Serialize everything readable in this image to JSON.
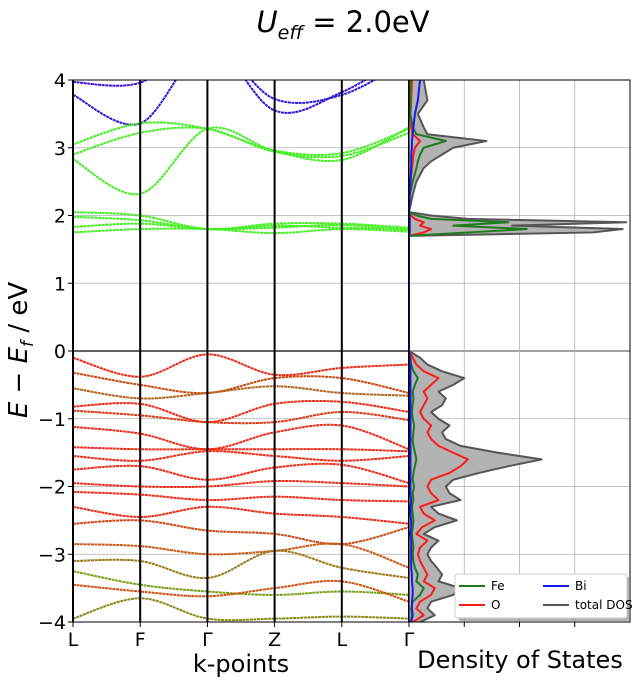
{
  "chart_data": [
    {
      "type": "line",
      "panel": "band structure",
      "title": "U_eff = 2.0eV",
      "title_parts": {
        "symbol": "U",
        "subscript": "eff",
        "rest": " = 2.0eV"
      },
      "xlabel": "k-points",
      "ylabel": "E − E_f   /   eV",
      "ylabel_parts": {
        "e": "E",
        "minus": " − ",
        "ef": "E",
        "ef_sub": "f",
        "unit": "   /   eV"
      },
      "x_ticks": [
        "L",
        "F",
        "Γ",
        "Z",
        "L",
        "Γ"
      ],
      "x": [
        0,
        1,
        2,
        3,
        4,
        5
      ],
      "ylim": [
        -4,
        4
      ],
      "y_ticks": [
        "−4",
        "−3",
        "−2",
        "−1",
        "0",
        "1",
        "2",
        "3",
        "4"
      ],
      "y_tick_values": [
        -4,
        -3,
        -2,
        -1,
        0,
        1,
        2,
        3,
        4
      ],
      "grid": true,
      "fermi_level": 0,
      "series": [
        {
          "color": "#3a10d6",
          "values": [
            3.97,
            3.96,
            4.6,
            3.55,
            3.82,
            4.4
          ]
        },
        {
          "color": "#2a1cd0",
          "values": [
            3.78,
            3.36,
            4.5,
            3.72,
            3.78,
            4.3
          ]
        },
        {
          "color": "#44ee22",
          "values": [
            3.05,
            3.36,
            3.28,
            2.96,
            2.92,
            3.28
          ]
        },
        {
          "color": "#44ee22",
          "values": [
            2.9,
            3.22,
            3.28,
            2.94,
            2.88,
            3.22
          ]
        },
        {
          "color": "#44ee22",
          "values": [
            2.83,
            2.32,
            3.28,
            2.95,
            2.82,
            3.3
          ]
        },
        {
          "color": "#44ee22",
          "values": [
            2.05,
            2.0,
            1.8,
            1.88,
            1.88,
            1.82
          ]
        },
        {
          "color": "#44ee22",
          "values": [
            1.98,
            1.93,
            1.8,
            1.85,
            1.82,
            1.8
          ]
        },
        {
          "color": "#44ee22",
          "values": [
            1.83,
            1.88,
            1.8,
            1.82,
            1.86,
            1.78
          ]
        },
        {
          "color": "#44ee22",
          "values": [
            1.75,
            1.8,
            1.8,
            1.74,
            1.8,
            1.76
          ]
        },
        {
          "color": "#ee2a14",
          "values": [
            -0.1,
            -0.38,
            -0.05,
            -0.35,
            -0.25,
            -0.2
          ]
        },
        {
          "color": "#c84a14",
          "values": [
            -0.32,
            -0.5,
            -0.62,
            -0.4,
            -0.4,
            -0.62
          ]
        },
        {
          "color": "#b0661a",
          "values": [
            -0.55,
            -0.7,
            -0.62,
            -0.52,
            -0.62,
            -0.66
          ]
        },
        {
          "color": "#ee2a14",
          "values": [
            -0.82,
            -0.78,
            -1.05,
            -0.78,
            -0.75,
            -0.9
          ]
        },
        {
          "color": "#d83a14",
          "values": [
            -0.88,
            -0.95,
            -1.05,
            -1.05,
            -0.9,
            -1.02
          ]
        },
        {
          "color": "#ee2a14",
          "values": [
            -1.12,
            -1.22,
            -1.45,
            -1.2,
            -1.1,
            -1.45
          ]
        },
        {
          "color": "#ee2a14",
          "values": [
            -1.42,
            -1.45,
            -1.45,
            -1.45,
            -1.45,
            -1.48
          ]
        },
        {
          "color": "#ee2a14",
          "values": [
            -1.55,
            -1.62,
            -1.48,
            -1.55,
            -1.62,
            -1.55
          ]
        },
        {
          "color": "#ee2a14",
          "values": [
            -1.75,
            -1.7,
            -1.9,
            -1.72,
            -1.68,
            -1.95
          ]
        },
        {
          "color": "#ee2a14",
          "values": [
            -1.95,
            -2.0,
            -2.0,
            -1.92,
            -1.95,
            -2.0
          ]
        },
        {
          "color": "#ee2a14",
          "values": [
            -2.08,
            -2.12,
            -2.2,
            -2.15,
            -2.2,
            -2.22
          ]
        },
        {
          "color": "#ee2a14",
          "values": [
            -2.3,
            -2.45,
            -2.3,
            -2.4,
            -2.45,
            -2.55
          ]
        },
        {
          "color": "#c84a14",
          "values": [
            -2.55,
            -2.5,
            -2.65,
            -2.7,
            -2.85,
            -2.6
          ]
        },
        {
          "color": "#c85a14",
          "values": [
            -2.85,
            -2.88,
            -3.0,
            -2.95,
            -2.85,
            -3.2
          ]
        },
        {
          "color": "#9a7a1a",
          "values": [
            -3.1,
            -3.1,
            -3.35,
            -2.95,
            -3.2,
            -3.35
          ]
        },
        {
          "color": "#7aa01a",
          "values": [
            -3.25,
            -3.45,
            -3.55,
            -3.6,
            -3.55,
            -3.6
          ]
        },
        {
          "color": "#cc5414",
          "values": [
            -3.45,
            -3.55,
            -3.62,
            -3.5,
            -3.4,
            -3.7
          ]
        },
        {
          "color": "#8a8a1a",
          "values": [
            -3.95,
            -3.65,
            -3.95,
            -3.95,
            -3.92,
            -3.95
          ]
        }
      ]
    },
    {
      "type": "area",
      "panel": "density of states",
      "xlabel": "Density of States",
      "ylim": [
        -4,
        4
      ],
      "grid": true,
      "legend_placement": "lower-right",
      "series": [
        {
          "name": "Fe",
          "color": "#1e7a1e",
          "y": [
            -4,
            -3.9,
            -3.8,
            -3.7,
            -3.6,
            -3.5,
            -3.4,
            -3.3,
            -3.2,
            -3.1,
            -3.0,
            -2.9,
            -2.8,
            -2.7,
            -2.6,
            -2.5,
            -2.4,
            -2.3,
            -2.2,
            -2.1,
            -2.0,
            -1.9,
            -1.8,
            -1.7,
            -1.6,
            -1.5,
            -1.4,
            -1.3,
            -1.2,
            -1.1,
            -1.0,
            -0.9,
            -0.8,
            -0.7,
            -0.6,
            -0.5,
            -0.4,
            -0.3,
            -0.2,
            -0.1,
            0,
            1.7,
            1.75,
            1.8,
            1.85,
            1.9,
            1.95,
            2.0,
            2.05,
            2.3,
            2.5,
            2.7,
            2.8,
            2.9,
            3.0,
            3.1,
            3.2,
            3.3,
            3.5,
            3.7,
            4.0
          ],
          "values": [
            0.02,
            0.04,
            0.03,
            0.05,
            0.15,
            0.2,
            0.1,
            0.12,
            0.08,
            0.06,
            0.05,
            0.06,
            0.05,
            0.04,
            0.05,
            0.06,
            0.05,
            0.04,
            0.06,
            0.05,
            0.07,
            0.05,
            0.06,
            0.08,
            0.1,
            0.08,
            0.06,
            0.05,
            0.06,
            0.07,
            0.05,
            0.04,
            0.05,
            0.06,
            0.05,
            0.08,
            0.12,
            0.06,
            0.03,
            0.02,
            0.0,
            0.0,
            0.8,
            1.6,
            0.6,
            1.35,
            0.3,
            0.1,
            0.0,
            0.01,
            0.05,
            0.1,
            0.12,
            0.15,
            0.2,
            0.5,
            0.1,
            0.05,
            0.02,
            0.02,
            0.02
          ]
        },
        {
          "name": "O",
          "color": "#ff1a1a",
          "y": [
            -4,
            -3.9,
            -3.8,
            -3.7,
            -3.6,
            -3.5,
            -3.4,
            -3.3,
            -3.2,
            -3.1,
            -3.0,
            -2.9,
            -2.8,
            -2.7,
            -2.6,
            -2.5,
            -2.4,
            -2.3,
            -2.2,
            -2.1,
            -2.0,
            -1.9,
            -1.8,
            -1.7,
            -1.6,
            -1.5,
            -1.4,
            -1.3,
            -1.2,
            -1.1,
            -1.0,
            -0.9,
            -0.8,
            -0.7,
            -0.6,
            -0.5,
            -0.4,
            -0.3,
            -0.2,
            -0.1,
            0,
            1.7,
            1.75,
            1.8,
            1.85,
            1.9,
            1.95,
            2.0,
            2.05,
            2.3,
            2.5,
            2.7,
            2.8,
            2.9,
            3.0,
            3.1,
            3.2,
            3.3,
            3.5,
            3.7,
            4.0
          ],
          "values": [
            0.05,
            0.2,
            0.1,
            0.15,
            0.3,
            0.35,
            0.2,
            0.25,
            0.2,
            0.15,
            0.12,
            0.15,
            0.25,
            0.1,
            0.18,
            0.35,
            0.2,
            0.15,
            0.4,
            0.3,
            0.25,
            0.3,
            0.55,
            0.7,
            0.8,
            0.6,
            0.4,
            0.3,
            0.25,
            0.3,
            0.2,
            0.15,
            0.2,
            0.25,
            0.2,
            0.3,
            0.4,
            0.2,
            0.1,
            0.05,
            0.0,
            0.0,
            0.2,
            0.3,
            0.15,
            0.2,
            0.08,
            0.03,
            0.0,
            0.01,
            0.02,
            0.04,
            0.05,
            0.06,
            0.08,
            0.15,
            0.05,
            0.03,
            0.02,
            0.03,
            0.04
          ]
        },
        {
          "name": "Bi",
          "color": "#1a1aee",
          "y": [
            -4,
            -3.9,
            -3.8,
            -3.7,
            -3.6,
            -3.5,
            -3.4,
            -3.3,
            -3.2,
            -3.1,
            -3.0,
            -2.9,
            -2.8,
            -2.7,
            -2.6,
            -2.5,
            -2.4,
            -2.3,
            -2.2,
            -2.1,
            -2.0,
            -1.9,
            -1.8,
            -1.7,
            -1.6,
            -1.5,
            -1.4,
            -1.3,
            -1.2,
            -1.1,
            -1.0,
            -0.9,
            -0.8,
            -0.7,
            -0.6,
            -0.5,
            -0.4,
            -0.3,
            -0.2,
            -0.1,
            0,
            1.7,
            1.75,
            1.8,
            1.85,
            1.9,
            1.95,
            2.0,
            2.05,
            2.3,
            2.5,
            2.7,
            2.8,
            2.9,
            3.0,
            3.1,
            3.2,
            3.3,
            3.5,
            3.7,
            4.0
          ],
          "values": [
            0.03,
            0.05,
            0.04,
            0.04,
            0.05,
            0.05,
            0.04,
            0.04,
            0.03,
            0.03,
            0.03,
            0.03,
            0.03,
            0.02,
            0.03,
            0.03,
            0.02,
            0.02,
            0.03,
            0.02,
            0.02,
            0.02,
            0.02,
            0.02,
            0.02,
            0.02,
            0.02,
            0.02,
            0.02,
            0.02,
            0.02,
            0.02,
            0.02,
            0.02,
            0.02,
            0.02,
            0.02,
            0.02,
            0.02,
            0.01,
            0.0,
            0.0,
            0.01,
            0.01,
            0.01,
            0.01,
            0.01,
            0.01,
            0.0,
            0.01,
            0.02,
            0.03,
            0.03,
            0.03,
            0.04,
            0.04,
            0.05,
            0.06,
            0.08,
            0.12,
            0.15
          ]
        },
        {
          "name": "total DOS",
          "color": "#555555",
          "y": [
            -4,
            -3.9,
            -3.8,
            -3.7,
            -3.6,
            -3.5,
            -3.4,
            -3.3,
            -3.2,
            -3.1,
            -3.0,
            -2.9,
            -2.8,
            -2.7,
            -2.6,
            -2.5,
            -2.4,
            -2.3,
            -2.2,
            -2.1,
            -2.0,
            -1.9,
            -1.8,
            -1.7,
            -1.6,
            -1.5,
            -1.4,
            -1.3,
            -1.2,
            -1.1,
            -1.0,
            -0.9,
            -0.8,
            -0.7,
            -0.6,
            -0.5,
            -0.4,
            -0.3,
            -0.2,
            -0.1,
            0,
            1.7,
            1.75,
            1.8,
            1.85,
            1.9,
            1.95,
            2.0,
            2.05,
            2.3,
            2.5,
            2.7,
            2.8,
            2.9,
            3.0,
            3.1,
            3.2,
            3.3,
            3.5,
            3.7,
            4.0
          ],
          "values": [
            0.15,
            0.35,
            0.25,
            0.3,
            0.6,
            0.7,
            0.4,
            0.45,
            0.38,
            0.3,
            0.25,
            0.3,
            0.4,
            0.2,
            0.35,
            0.65,
            0.4,
            0.3,
            0.7,
            0.55,
            0.5,
            0.6,
            0.95,
            1.35,
            1.8,
            1.2,
            0.7,
            0.5,
            0.45,
            0.55,
            0.4,
            0.3,
            0.45,
            0.5,
            0.4,
            0.6,
            0.75,
            0.45,
            0.25,
            0.15,
            0.0,
            0.0,
            2.5,
            2.9,
            1.4,
            2.95,
            0.8,
            0.3,
            0.0,
            0.05,
            0.1,
            0.2,
            0.3,
            0.45,
            0.6,
            1.05,
            0.25,
            0.2,
            0.12,
            0.25,
            0.2
          ]
        }
      ]
    }
  ]
}
